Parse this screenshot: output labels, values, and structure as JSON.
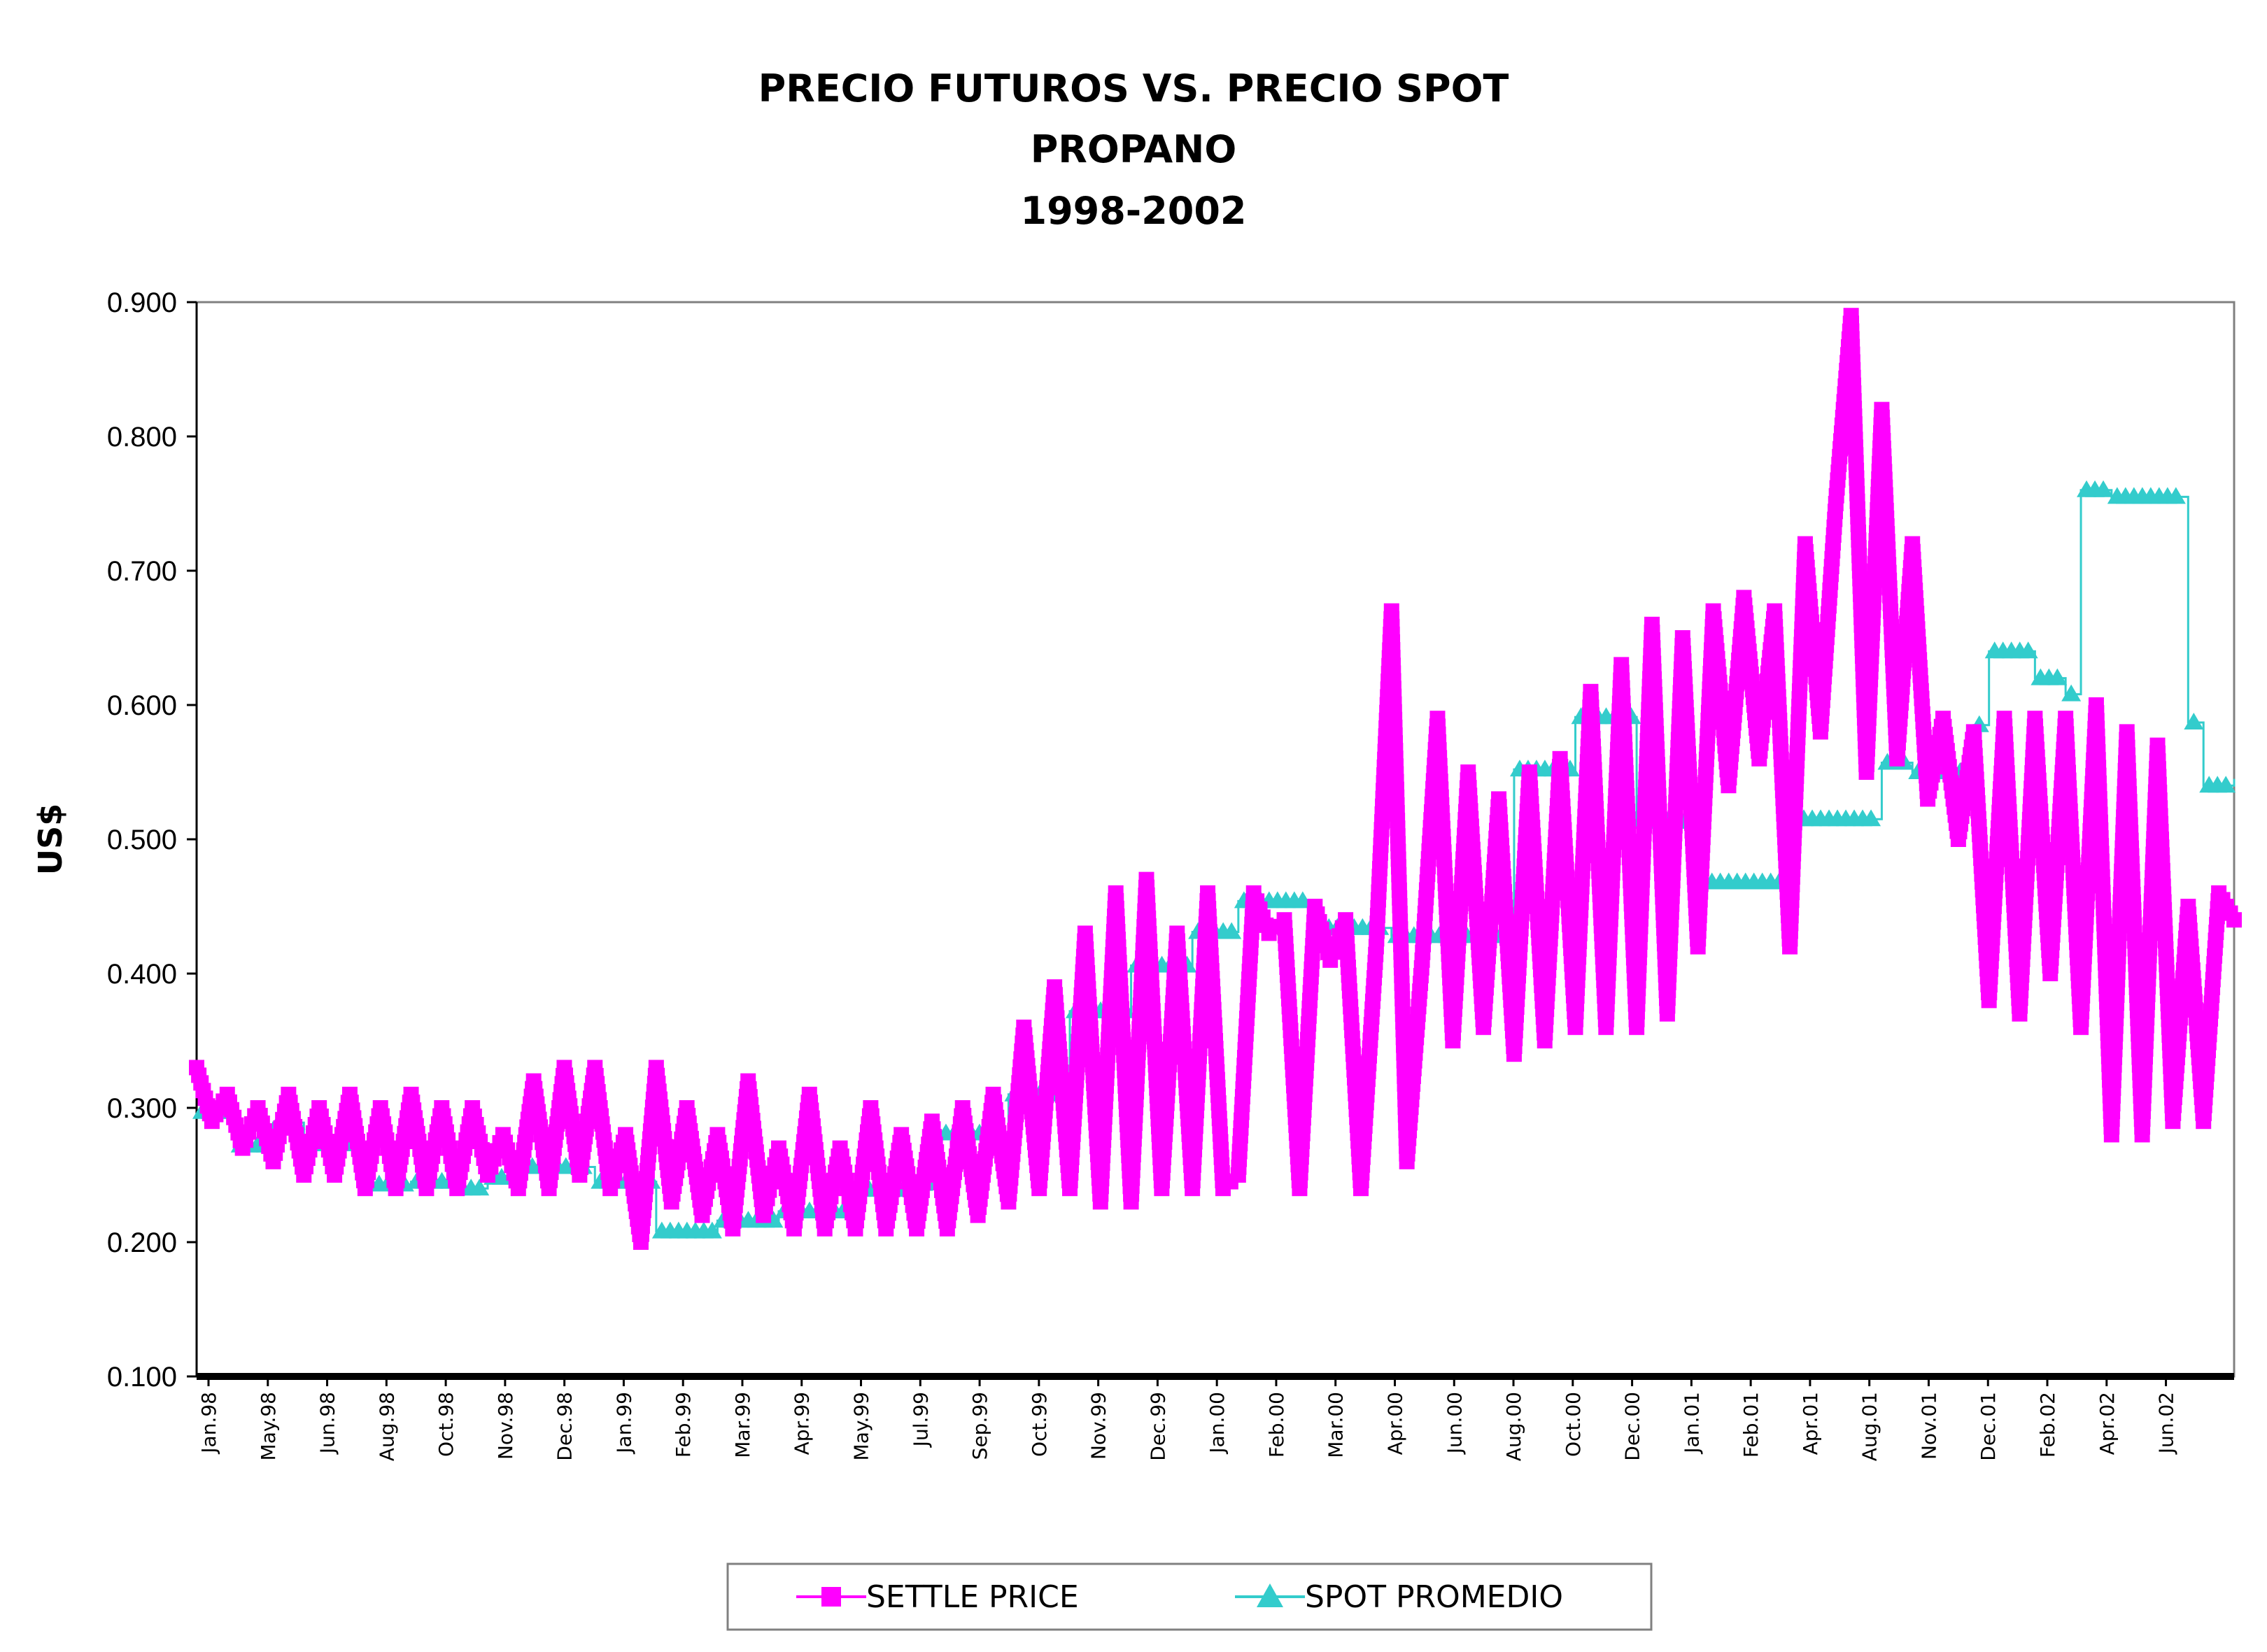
{
  "chart_data": {
    "type": "line",
    "title": "PRECIO FUTUROS VS. PRECIO SPOT",
    "subtitle": "PROPANO",
    "subtitle2": "1998-2002",
    "ylabel": "US$",
    "xlabel": "",
    "ylim": [
      0.1,
      0.9
    ],
    "y_ticks": [
      "0.100",
      "0.200",
      "0.300",
      "0.400",
      "0.500",
      "0.600",
      "0.700",
      "0.800",
      "0.900"
    ],
    "x_tick_labels": [
      "Jan.98",
      "May.98",
      "Jun.98",
      "Aug.98",
      "Oct.98",
      "Nov.98",
      "Dec.98",
      "Jan.99",
      "Feb.99",
      "Mar.99",
      "Apr.99",
      "May.99",
      "Jul.99",
      "Sep.99",
      "Oct.99",
      "Nov.99",
      "Dec.99",
      "Jan.00",
      "Feb.00",
      "Mar.00",
      "Apr.00",
      "Jun.00",
      "Aug.00",
      "Oct.00",
      "Dec.00",
      "Jan.01",
      "Feb.01",
      "Apr.01",
      "Aug.01",
      "Nov.01",
      "Dec.01",
      "Feb.02",
      "Apr.02",
      "Jun.02"
    ],
    "grid": false,
    "legend_position": "bottom",
    "series": [
      {
        "name": "SETTLE PRICE",
        "color": "#ff00ff",
        "marker": "square",
        "x": [
          0,
          1,
          2,
          3,
          4,
          5,
          6,
          7,
          8,
          9,
          10,
          11,
          12,
          13,
          14,
          15,
          16,
          17,
          18,
          19,
          20,
          21,
          22,
          23,
          24,
          25,
          26,
          27,
          28,
          29,
          30,
          31,
          32,
          33,
          34,
          35,
          36,
          37,
          38,
          39,
          40,
          41,
          42,
          43,
          44,
          45,
          46,
          47,
          48,
          49,
          50,
          51,
          52,
          53,
          54,
          55,
          56,
          57,
          58,
          59,
          60,
          61,
          62,
          63,
          64,
          65,
          66,
          67,
          68,
          69,
          70,
          71,
          72,
          73,
          74,
          75,
          76,
          77,
          78,
          79,
          80,
          81,
          82,
          83,
          84,
          85,
          86,
          87,
          88,
          89,
          90,
          91,
          92,
          93,
          94,
          95,
          96,
          97,
          98,
          99,
          100,
          101,
          102,
          103,
          104,
          105,
          106,
          107,
          108,
          109,
          110,
          111,
          112,
          113,
          114,
          115,
          116,
          117,
          118,
          119,
          120,
          121,
          122,
          123,
          124,
          125,
          126,
          127,
          128,
          129,
          130,
          131,
          132,
          133
        ],
        "y": [
          0.33,
          0.29,
          0.31,
          0.27,
          0.3,
          0.26,
          0.31,
          0.25,
          0.3,
          0.25,
          0.31,
          0.24,
          0.3,
          0.24,
          0.31,
          0.24,
          0.3,
          0.24,
          0.3,
          0.25,
          0.28,
          0.24,
          0.32,
          0.24,
          0.33,
          0.25,
          0.33,
          0.24,
          0.28,
          0.2,
          0.33,
          0.23,
          0.3,
          0.22,
          0.28,
          0.21,
          0.32,
          0.22,
          0.27,
          0.21,
          0.31,
          0.21,
          0.27,
          0.21,
          0.3,
          0.21,
          0.28,
          0.21,
          0.29,
          0.21,
          0.3,
          0.22,
          0.31,
          0.23,
          0.36,
          0.24,
          0.39,
          0.24,
          0.43,
          0.23,
          0.46,
          0.23,
          0.47,
          0.24,
          0.43,
          0.24,
          0.46,
          0.24,
          0.25,
          0.46,
          0.43,
          0.44,
          0.24,
          0.45,
          0.41,
          0.44,
          0.24,
          0.42,
          0.67,
          0.26,
          0.41,
          0.59,
          0.35,
          0.55,
          0.36,
          0.53,
          0.34,
          0.55,
          0.35,
          0.56,
          0.36,
          0.61,
          0.36,
          0.63,
          0.36,
          0.66,
          0.37,
          0.65,
          0.42,
          0.67,
          0.54,
          0.68,
          0.56,
          0.67,
          0.42,
          0.72,
          0.58,
          0.75,
          0.89,
          0.55,
          0.82,
          0.56,
          0.72,
          0.53,
          0.59,
          0.5,
          0.58,
          0.38,
          0.59,
          0.37,
          0.59,
          0.4,
          0.59,
          0.36,
          0.6,
          0.28,
          0.58,
          0.28,
          0.57,
          0.29,
          0.45,
          0.29,
          0.46,
          0.44
        ]
      },
      {
        "name": "SPOT PROMEDIO",
        "color": "#33cccc",
        "marker": "triangle",
        "x": [
          0,
          2.5,
          5,
          7,
          11,
          14,
          17,
          19,
          21,
          26,
          30,
          34,
          38,
          43,
          48,
          53,
          57,
          61,
          65,
          68,
          73,
          78,
          82,
          86,
          90,
          94,
          98,
          104,
          110,
          112,
          116,
          117,
          120,
          122,
          123,
          125,
          130,
          131,
          133
        ],
        "y": [
          0.297,
          0.272,
          0.289,
          0.273,
          0.243,
          0.245,
          0.24,
          0.248,
          0.256,
          0.245,
          0.208,
          0.216,
          0.223,
          0.239,
          0.281,
          0.31,
          0.372,
          0.406,
          0.431,
          0.454,
          0.434,
          0.428,
          0.428,
          0.552,
          0.591,
          0.513,
          0.468,
          0.515,
          0.557,
          0.55,
          0.585,
          0.64,
          0.62,
          0.608,
          0.76,
          0.755,
          0.587,
          0.54,
          0.545
        ]
      }
    ]
  },
  "legend": {
    "settle_label": "SETTLE PRICE",
    "spot_label": "SPOT PROMEDIO"
  }
}
